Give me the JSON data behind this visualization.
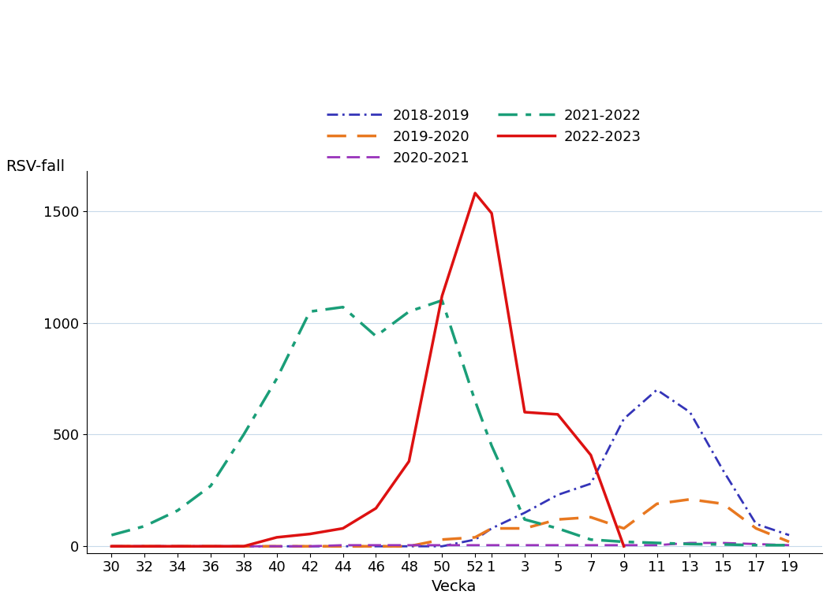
{
  "x_labels": [
    "30",
    "32",
    "34",
    "36",
    "38",
    "40",
    "42",
    "44",
    "46",
    "48",
    "50",
    "52",
    "1",
    "3",
    "5",
    "7",
    "9",
    "11",
    "13",
    "15",
    "17",
    "19"
  ],
  "x_positions": [
    0,
    2,
    4,
    6,
    8,
    10,
    12,
    14,
    16,
    18,
    20,
    22,
    23,
    25,
    27,
    29,
    31,
    33,
    35,
    37,
    39,
    41
  ],
  "series": {
    "2018-2019": {
      "color": "#3434b8",
      "linewidth": 2.0,
      "data_x": [
        0,
        2,
        4,
        6,
        8,
        10,
        12,
        14,
        16,
        18,
        20,
        22,
        23,
        25,
        27,
        29,
        31,
        33,
        35,
        37,
        39,
        41
      ],
      "data_y": [
        0,
        0,
        0,
        0,
        0,
        0,
        0,
        0,
        0,
        0,
        0,
        30,
        80,
        150,
        230,
        280,
        570,
        700,
        600,
        340,
        100,
        50
      ]
    },
    "2019-2020": {
      "color": "#e87820",
      "linewidth": 2.5,
      "data_x": [
        0,
        2,
        4,
        6,
        8,
        10,
        12,
        14,
        16,
        18,
        20,
        22,
        23,
        25,
        27,
        29,
        31,
        33,
        35,
        37,
        39,
        41
      ],
      "data_y": [
        0,
        0,
        0,
        0,
        0,
        0,
        0,
        0,
        0,
        0,
        30,
        40,
        80,
        80,
        120,
        130,
        80,
        190,
        210,
        190,
        80,
        20
      ]
    },
    "2020-2021": {
      "color": "#9933bb",
      "linewidth": 2.0,
      "data_x": [
        0,
        2,
        4,
        6,
        8,
        10,
        12,
        14,
        16,
        18,
        20,
        22,
        23,
        25,
        27,
        29,
        31,
        33,
        35,
        37,
        39,
        41
      ],
      "data_y": [
        0,
        0,
        0,
        0,
        0,
        0,
        0,
        5,
        5,
        5,
        5,
        5,
        5,
        5,
        5,
        5,
        5,
        5,
        15,
        15,
        10,
        5
      ]
    },
    "2021-2022": {
      "color": "#1a9e78",
      "linewidth": 2.5,
      "data_x": [
        0,
        2,
        4,
        6,
        8,
        10,
        12,
        14,
        16,
        18,
        20,
        22,
        23,
        25,
        27,
        29,
        31,
        33,
        35,
        37,
        39,
        41
      ],
      "data_y": [
        50,
        90,
        160,
        270,
        500,
        750,
        1050,
        1070,
        940,
        1050,
        1100,
        650,
        450,
        120,
        80,
        30,
        20,
        15,
        10,
        8,
        5,
        5
      ]
    },
    "2022-2023": {
      "color": "#dd1111",
      "linewidth": 2.5,
      "data_x": [
        0,
        2,
        4,
        6,
        8,
        10,
        12,
        14,
        16,
        18,
        20,
        22,
        23,
        25,
        27,
        29,
        31
      ],
      "data_y": [
        0,
        0,
        0,
        0,
        0,
        40,
        55,
        80,
        170,
        380,
        1120,
        1580,
        1490,
        600,
        590,
        408,
        0
      ]
    }
  },
  "ylabel": "RSV-fall",
  "xlabel": "Vecka",
  "xlim": [
    -1.5,
    43
  ],
  "ylim": [
    -30,
    1680
  ],
  "yticks": [
    0,
    500,
    1000,
    1500
  ],
  "background_color": "#ffffff",
  "grid_color": "#c8daea",
  "axis_fontsize": 14,
  "tick_fontsize": 13,
  "legend_fontsize": 13
}
